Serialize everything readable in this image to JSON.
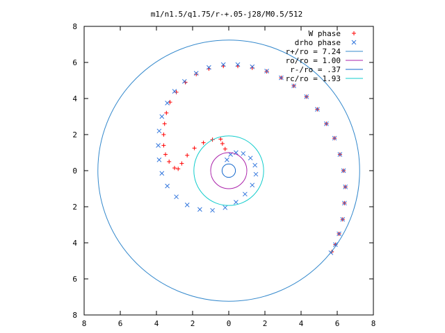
{
  "chart_data": {
    "type": "scatter",
    "title": "m1/n1.5/q1.75/r-+.05-j28/M0.5/512",
    "xlim": [
      -8,
      8
    ],
    "ylim": [
      -8,
      8
    ],
    "x_ticks": [
      -8,
      -6,
      -4,
      -2,
      0,
      2,
      4,
      6,
      8
    ],
    "y_ticks": [
      -8,
      -6,
      -4,
      -2,
      0,
      2,
      4,
      6,
      8
    ],
    "x_tick_labels": [
      "8",
      "6",
      "4",
      "2",
      "0",
      "2",
      "4",
      "6",
      "8"
    ],
    "y_tick_labels": [
      "8",
      "6",
      "4",
      "2",
      "0",
      "2",
      "4",
      "6",
      "8"
    ],
    "grid": false,
    "legend_position": "top-right",
    "series": [
      {
        "name": "W phase",
        "kind": "points",
        "marker": "+",
        "color": "#ff0000",
        "points": [
          [
            -0.2,
            1.2
          ],
          [
            -0.35,
            1.5
          ],
          [
            -0.45,
            1.75
          ],
          [
            -0.9,
            1.72
          ],
          [
            -1.4,
            1.55
          ],
          [
            -1.9,
            1.25
          ],
          [
            -2.3,
            0.85
          ],
          [
            -2.6,
            0.4
          ],
          [
            -2.8,
            0.1
          ],
          [
            -3.0,
            0.15
          ],
          [
            -3.3,
            0.5
          ],
          [
            -3.5,
            0.9
          ],
          [
            -3.6,
            1.4
          ],
          [
            -3.6,
            2.0
          ],
          [
            -3.55,
            2.6
          ],
          [
            -3.45,
            3.2
          ],
          [
            -3.25,
            3.8
          ],
          [
            -2.9,
            4.35
          ],
          [
            -2.4,
            4.9
          ],
          [
            -1.8,
            5.35
          ],
          [
            -1.1,
            5.65
          ],
          [
            -0.3,
            5.8
          ],
          [
            0.5,
            5.8
          ],
          [
            1.3,
            5.7
          ],
          [
            2.1,
            5.5
          ],
          [
            2.9,
            5.15
          ],
          [
            3.6,
            4.7
          ],
          [
            4.3,
            4.1
          ],
          [
            4.9,
            3.4
          ],
          [
            5.4,
            2.6
          ],
          [
            5.85,
            1.8
          ],
          [
            6.15,
            0.9
          ],
          [
            6.35,
            0.0
          ],
          [
            6.45,
            -0.9
          ],
          [
            6.4,
            -1.8
          ],
          [
            6.3,
            -2.7
          ],
          [
            6.1,
            -3.5
          ],
          [
            5.9,
            -4.1
          ],
          [
            5.7,
            -4.5
          ]
        ]
      },
      {
        "name": "drho phase",
        "kind": "points",
        "marker": "x",
        "color": "#3377dd",
        "points": [
          [
            -0.1,
            0.6
          ],
          [
            0.1,
            0.9
          ],
          [
            0.4,
            1.0
          ],
          [
            0.8,
            0.95
          ],
          [
            1.2,
            0.7
          ],
          [
            1.45,
            0.3
          ],
          [
            1.5,
            -0.2
          ],
          [
            1.3,
            -0.8
          ],
          [
            0.9,
            -1.3
          ],
          [
            0.4,
            -1.75
          ],
          [
            -0.2,
            -2.05
          ],
          [
            -0.9,
            -2.2
          ],
          [
            -1.6,
            -2.15
          ],
          [
            -2.3,
            -1.9
          ],
          [
            -2.9,
            -1.45
          ],
          [
            -3.4,
            -0.85
          ],
          [
            -3.7,
            -0.15
          ],
          [
            -3.85,
            0.6
          ],
          [
            -3.9,
            1.4
          ],
          [
            -3.85,
            2.2
          ],
          [
            -3.7,
            3.0
          ],
          [
            -3.4,
            3.75
          ],
          [
            -3.0,
            4.4
          ],
          [
            -2.45,
            4.95
          ],
          [
            -1.8,
            5.4
          ],
          [
            -1.1,
            5.72
          ],
          [
            -0.3,
            5.88
          ],
          [
            0.5,
            5.88
          ],
          [
            1.3,
            5.76
          ],
          [
            2.1,
            5.52
          ],
          [
            2.9,
            5.15
          ],
          [
            3.6,
            4.7
          ],
          [
            4.3,
            4.1
          ],
          [
            4.9,
            3.4
          ],
          [
            5.4,
            2.6
          ],
          [
            5.85,
            1.8
          ],
          [
            6.15,
            0.9
          ],
          [
            6.35,
            0.0
          ],
          [
            6.45,
            -0.9
          ],
          [
            6.4,
            -1.8
          ],
          [
            6.3,
            -2.7
          ],
          [
            6.1,
            -3.5
          ],
          [
            5.9,
            -4.1
          ],
          [
            5.65,
            -4.55
          ]
        ]
      },
      {
        "name": "r+/ro = 7.24",
        "kind": "circle",
        "radius": 7.24,
        "color": "#3388cc"
      },
      {
        "name": "ro/ro = 1.00",
        "kind": "circle",
        "radius": 1.0,
        "color": "#aa22aa"
      },
      {
        "name": "r-/ro = .37",
        "kind": "circle",
        "radius": 0.37,
        "color": "#1166cc"
      },
      {
        "name": "rc/ro = 1.93",
        "kind": "circle",
        "radius": 1.93,
        "color": "#11cccc"
      }
    ]
  }
}
